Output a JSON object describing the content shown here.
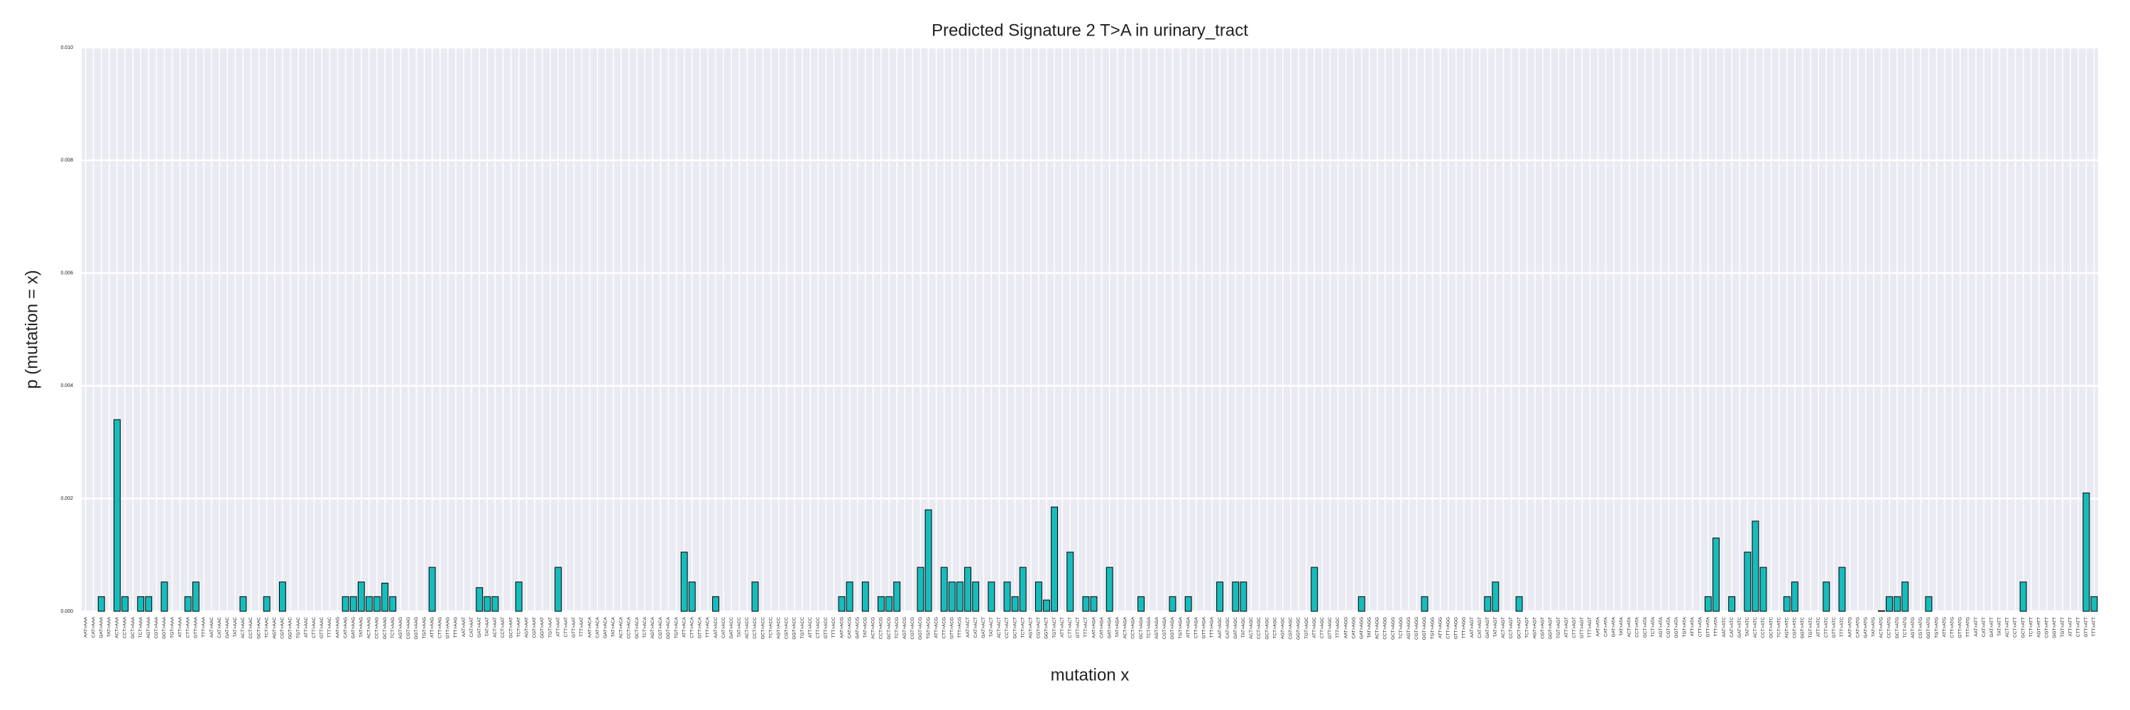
{
  "chart_data": {
    "type": "bar",
    "title": "Predicted Signature 2 T>A in urinary_tract",
    "x_label": "mutation x",
    "y_label": "p (mutation = x)",
    "categories": [
      "AAT>AAA",
      "CAT>AAA",
      "GAT>AAA",
      "TAT>AAA",
      "ACT>AAA",
      "CCT>AAA",
      "GCT>AAA",
      "TCT>AAA",
      "AGT>AAA",
      "CGT>AAA",
      "GGT>AAA",
      "TGT>AAA",
      "ATT>AAA",
      "CTT>AAA",
      "GTT>AAA",
      "TTT>AAA",
      "AAT>AAC",
      "CAT>AAC",
      "GAT>AAC",
      "TAT>AAC",
      "ACT>AAC",
      "CCT>AAC",
      "GCT>AAC",
      "TCT>AAC",
      "AGT>AAC",
      "CGT>AAC",
      "GGT>AAC",
      "TGT>AAC",
      "ATT>AAC",
      "CTT>AAC",
      "GTT>AAC",
      "TTT>AAC",
      "AAT>AAG",
      "CAT>AAG",
      "GAT>AAG",
      "TAT>AAG",
      "ACT>AAG",
      "CCT>AAG",
      "GCT>AAG",
      "TCT>AAG",
      "AGT>AAG",
      "CGT>AAG",
      "GGT>AAG",
      "TGT>AAG",
      "ATT>AAG",
      "CTT>AAG",
      "GTT>AAG",
      "TTT>AAG",
      "AAT>AAT",
      "CAT>AAT",
      "GAT>AAT",
      "TAT>AAT",
      "ACT>AAT",
      "CCT>AAT",
      "GCT>AAT",
      "TCT>AAT",
      "AGT>AAT",
      "CGT>AAT",
      "GGT>AAT",
      "TGT>AAT",
      "ATT>AAT",
      "CTT>AAT",
      "GTT>AAT",
      "TTT>AAT",
      "AAT>ACA",
      "CAT>ACA",
      "GAT>ACA",
      "TAT>ACA",
      "ACT>ACA",
      "CCT>ACA",
      "GCT>ACA",
      "TCT>ACA",
      "AGT>ACA",
      "CGT>ACA",
      "GGT>ACA",
      "TGT>ACA",
      "ATT>ACA",
      "CTT>ACA",
      "GTT>ACA",
      "TTT>ACA",
      "AAT>ACC",
      "CAT>ACC",
      "GAT>ACC",
      "TAT>ACC",
      "ACT>ACC",
      "CCT>ACC",
      "GCT>ACC",
      "TCT>ACC",
      "AGT>ACC",
      "CGT>ACC",
      "GGT>ACC",
      "TGT>ACC",
      "ATT>ACC",
      "CTT>ACC",
      "GTT>ACC",
      "TTT>ACC",
      "AAT>ACG",
      "CAT>ACG",
      "GAT>ACG",
      "TAT>ACG",
      "ACT>ACG",
      "CCT>ACG",
      "GCT>ACG",
      "TCT>ACG",
      "AGT>ACG",
      "CGT>ACG",
      "GGT>ACG",
      "TGT>ACG",
      "ATT>ACG",
      "CTT>ACG",
      "GTT>ACG",
      "TTT>ACG",
      "AAT>ACT",
      "CAT>ACT",
      "GAT>ACT",
      "TAT>ACT",
      "ACT>ACT",
      "CCT>ACT",
      "GCT>ACT",
      "TCT>ACT",
      "AGT>ACT",
      "CGT>ACT",
      "GGT>ACT",
      "TGT>ACT",
      "ATT>ACT",
      "CTT>ACT",
      "GTT>ACT",
      "TTT>ACT",
      "AAT>AGA",
      "CAT>AGA",
      "GAT>AGA",
      "TAT>AGA",
      "ACT>AGA",
      "CCT>AGA",
      "GCT>AGA",
      "TCT>AGA",
      "AGT>AGA",
      "CGT>AGA",
      "GGT>AGA",
      "TGT>AGA",
      "ATT>AGA",
      "CTT>AGA",
      "GTT>AGA",
      "TTT>AGA",
      "AAT>AGC",
      "CAT>AGC",
      "GAT>AGC",
      "TAT>AGC",
      "ACT>AGC",
      "CCT>AGC",
      "GCT>AGC",
      "TCT>AGC",
      "AGT>AGC",
      "CGT>AGC",
      "GGT>AGC",
      "TGT>AGC",
      "ATT>AGC",
      "CTT>AGC",
      "GTT>AGC",
      "TTT>AGC",
      "AAT>AGG",
      "CAT>AGG",
      "GAT>AGG",
      "TAT>AGG",
      "ACT>AGG",
      "CCT>AGG",
      "GCT>AGG",
      "TCT>AGG",
      "AGT>AGG",
      "CGT>AGG",
      "GGT>AGG",
      "TGT>AGG",
      "ATT>AGG",
      "CTT>AGG",
      "GTT>AGG",
      "TTT>AGG",
      "AAT>AGT",
      "CAT>AGT",
      "GAT>AGT",
      "TAT>AGT",
      "ACT>AGT",
      "CCT>AGT",
      "GCT>AGT",
      "TCT>AGT",
      "AGT>AGT",
      "CGT>AGT",
      "GGT>AGT",
      "TGT>AGT",
      "ATT>AGT",
      "CTT>AGT",
      "GTT>AGT",
      "TTT>AGT",
      "AAT>ATA",
      "CAT>ATA",
      "GAT>ATA",
      "TAT>ATA",
      "ACT>ATA",
      "CCT>ATA",
      "GCT>ATA",
      "TCT>ATA",
      "AGT>ATA",
      "CGT>ATA",
      "GGT>ATA",
      "TGT>ATA",
      "ATT>ATA",
      "CTT>ATA",
      "GTT>ATA",
      "TTT>ATA",
      "AAT>ATC",
      "CAT>ATC",
      "GAT>ATC",
      "TAT>ATC",
      "ACT>ATC",
      "CCT>ATC",
      "GCT>ATC",
      "TCT>ATC",
      "AGT>ATC",
      "CGT>ATC",
      "GGT>ATC",
      "TGT>ATC",
      "ATT>ATC",
      "CTT>ATC",
      "GTT>ATC",
      "TTT>ATC",
      "AAT>ATG",
      "CAT>ATG",
      "GAT>ATG",
      "TAT>ATG",
      "ACT>ATG",
      "CCT>ATG",
      "GCT>ATG",
      "TCT>ATG",
      "AGT>ATG",
      "CGT>ATG",
      "GGT>ATG",
      "TGT>ATG",
      "ATT>ATG",
      "CTT>ATG",
      "GTT>ATG",
      "TTT>ATG",
      "AAT>ATT",
      "CAT>ATT",
      "GAT>ATT",
      "TAT>ATT",
      "ACT>ATT",
      "CCT>ATT",
      "GCT>ATT",
      "TCT>ATT",
      "AGT>ATT",
      "CGT>ATT",
      "GGT>ATT",
      "TGT>ATT",
      "ATT>ATT",
      "CTT>ATT",
      "GTT>ATT",
      "TTT>ATT"
    ],
    "values": [
      0,
      0,
      0.00026,
      0,
      0.0034,
      0.00026,
      0,
      0.00026,
      0.00026,
      0,
      0.00052,
      0,
      0,
      0.00026,
      0.00052,
      0,
      0,
      0,
      0,
      0,
      0.00026,
      0,
      0,
      0.00026,
      0,
      0.00052,
      0,
      0,
      0,
      0,
      0,
      0,
      0,
      0.00026,
      0.00026,
      0.00052,
      0.00026,
      0.00026,
      0.0005,
      0.00026,
      0,
      0,
      0,
      0,
      0.00078,
      0,
      0,
      0,
      0,
      0,
      0.00042,
      0.00026,
      0.00026,
      0,
      0,
      0.00052,
      0,
      0,
      0,
      0,
      0.00078,
      0,
      0,
      0,
      0,
      0,
      0,
      0,
      0,
      0,
      0,
      0,
      0,
      0,
      0,
      0,
      0.00105,
      0.00052,
      0,
      0,
      0.00026,
      0,
      0,
      0,
      0,
      0.00052,
      0,
      0,
      0,
      0,
      0,
      0,
      0,
      0,
      0,
      0,
      0.00026,
      0.00052,
      0,
      0.00052,
      0,
      0.00026,
      0.00026,
      0.00052,
      0,
      0,
      0.00078,
      0.0018,
      0,
      0.00078,
      0.00052,
      0.00052,
      0.00078,
      0.00052,
      0,
      0.00052,
      0,
      0.00052,
      0.00026,
      0.00078,
      0,
      0.00052,
      0.0002,
      0.00185,
      0,
      0.00105,
      0,
      0.00026,
      0.00026,
      0,
      0.00078,
      0,
      0,
      0,
      0.00026,
      0,
      0,
      0,
      0.00026,
      0,
      0.00026,
      0,
      0,
      0,
      0.00052,
      0,
      0.00052,
      0.00052,
      0,
      0,
      0,
      0,
      0,
      0,
      0,
      0,
      0.00078,
      0,
      0,
      0,
      0,
      0,
      0.00026,
      0,
      0,
      0,
      0,
      0,
      0,
      0,
      0.00026,
      0,
      0,
      0,
      0,
      0,
      0,
      0,
      0.00026,
      0.00052,
      0,
      0,
      0.00026,
      0,
      0,
      0,
      0,
      0,
      0,
      0,
      0,
      0,
      0,
      0,
      0,
      0,
      0,
      0,
      0,
      0,
      0,
      0,
      0,
      0,
      0,
      0,
      0.00026,
      0.0013,
      0,
      0.00026,
      0,
      0.00105,
      0.0016,
      0.00078,
      0,
      0,
      0.00026,
      0.00052,
      0,
      0,
      0,
      0.00052,
      0,
      0.00078,
      0,
      0,
      0,
      0,
      1e-05,
      0.00026,
      0.00026,
      0.00052,
      0,
      0,
      0.00026,
      0,
      0,
      0,
      0,
      0,
      0,
      0,
      0,
      0,
      0,
      0,
      0.00052,
      0,
      0,
      0,
      0,
      0,
      0,
      0,
      0.0021,
      0.00026
    ],
    "color": "#17bcbc",
    "edge_color": "#000000",
    "ylim": [
      0,
      0.01
    ],
    "yticks": [
      {
        "value": 0,
        "label": "0.000"
      },
      {
        "value": 0.002,
        "label": "0.002"
      },
      {
        "value": 0.004,
        "label": "0.004"
      },
      {
        "value": 0.006,
        "label": "0.006"
      },
      {
        "value": 0.008,
        "label": "0.008"
      },
      {
        "value": 0.01,
        "label": "0.010"
      }
    ],
    "grid": true
  }
}
